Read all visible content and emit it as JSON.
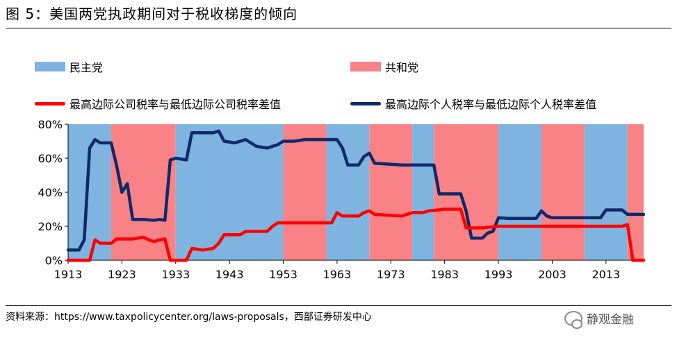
{
  "header": {
    "title": "图 5：美国两党执政期间对于税收梯度的倾向"
  },
  "legend": {
    "democrat": "民主党",
    "republican": "共和党",
    "corporate_line": "最高边际公司税率与最低边际公司税率差值",
    "individual_line": "最高边际个人税率与最低边际个人税率差值"
  },
  "colors": {
    "democrat": "#7eb4df",
    "republican": "#f98287",
    "corporate": "#ff0000",
    "individual": "#0e2a6b"
  },
  "footer": {
    "source": "资料来源：https://www.taxpolicycenter.org/laws-proposals，西部证券研发中心",
    "watermark": "静观金融"
  },
  "chart_data": {
    "type": "area",
    "xlim": [
      1913,
      2020
    ],
    "ylim": [
      0,
      80
    ],
    "ylabel_format": "percent",
    "x_ticks": [
      "1913",
      "1923",
      "1933",
      "1943",
      "1953",
      "1963",
      "1973",
      "1983",
      "1993",
      "2003",
      "2013"
    ],
    "y_ticks": [
      "0%",
      "20%",
      "40%",
      "60%",
      "80%"
    ],
    "party_periods": [
      {
        "party": "democrat",
        "start": 1913,
        "end": 1921
      },
      {
        "party": "republican",
        "start": 1921,
        "end": 1933
      },
      {
        "party": "democrat",
        "start": 1933,
        "end": 1953
      },
      {
        "party": "republican",
        "start": 1953,
        "end": 1961
      },
      {
        "party": "democrat",
        "start": 1961,
        "end": 1969
      },
      {
        "party": "republican",
        "start": 1969,
        "end": 1977
      },
      {
        "party": "democrat",
        "start": 1977,
        "end": 1981
      },
      {
        "party": "republican",
        "start": 1981,
        "end": 1993
      },
      {
        "party": "democrat",
        "start": 1993,
        "end": 2001
      },
      {
        "party": "republican",
        "start": 2001,
        "end": 2009
      },
      {
        "party": "democrat",
        "start": 2009,
        "end": 2017
      },
      {
        "party": "republican",
        "start": 2017,
        "end": 2020
      }
    ],
    "series": [
      {
        "name": "最高边际个人税率与最低边际个人税率差值",
        "key": "individual",
        "points": [
          [
            1913,
            6
          ],
          [
            1915,
            6
          ],
          [
            1916,
            12
          ],
          [
            1917,
            66
          ],
          [
            1918,
            71
          ],
          [
            1919,
            69
          ],
          [
            1920,
            69
          ],
          [
            1921,
            69
          ],
          [
            1922,
            56
          ],
          [
            1923,
            40
          ],
          [
            1924,
            45
          ],
          [
            1925,
            24
          ],
          [
            1927,
            24
          ],
          [
            1929,
            23.5
          ],
          [
            1930,
            24
          ],
          [
            1931,
            23.5
          ],
          [
            1932,
            59
          ],
          [
            1933,
            60
          ],
          [
            1935,
            59
          ],
          [
            1936,
            75
          ],
          [
            1938,
            75
          ],
          [
            1940,
            75
          ],
          [
            1941,
            76
          ],
          [
            1942,
            70
          ],
          [
            1944,
            69
          ],
          [
            1946,
            71
          ],
          [
            1948,
            67
          ],
          [
            1950,
            66
          ],
          [
            1952,
            68
          ],
          [
            1953,
            70
          ],
          [
            1955,
            70
          ],
          [
            1957,
            71
          ],
          [
            1960,
            71
          ],
          [
            1961,
            71
          ],
          [
            1963,
            71
          ],
          [
            1964,
            66
          ],
          [
            1965,
            56
          ],
          [
            1967,
            56
          ],
          [
            1968,
            61
          ],
          [
            1969,
            63
          ],
          [
            1970,
            57
          ],
          [
            1975,
            56
          ],
          [
            1980,
            56
          ],
          [
            1981,
            56
          ],
          [
            1982,
            39
          ],
          [
            1984,
            39
          ],
          [
            1986,
            39
          ],
          [
            1987,
            29
          ],
          [
            1988,
            13
          ],
          [
            1990,
            13
          ],
          [
            1991,
            16
          ],
          [
            1992,
            17
          ],
          [
            1993,
            25
          ],
          [
            1995,
            24.6
          ],
          [
            2000,
            24.6
          ],
          [
            2001,
            29
          ],
          [
            2002,
            26
          ],
          [
            2003,
            25
          ],
          [
            2005,
            25
          ],
          [
            2010,
            25
          ],
          [
            2012,
            25
          ],
          [
            2013,
            29.6
          ],
          [
            2016,
            29.6
          ],
          [
            2017,
            27
          ],
          [
            2020,
            27
          ]
        ]
      },
      {
        "name": "最高边际公司税率与最低边际公司税率差值",
        "key": "corporate",
        "points": [
          [
            1913,
            0
          ],
          [
            1917,
            0
          ],
          [
            1918,
            12
          ],
          [
            1919,
            10
          ],
          [
            1921,
            10
          ],
          [
            1922,
            12.5
          ],
          [
            1925,
            12.5
          ],
          [
            1927,
            13.5
          ],
          [
            1928,
            12
          ],
          [
            1929,
            11
          ],
          [
            1930,
            12
          ],
          [
            1931,
            12.5
          ],
          [
            1932,
            0
          ],
          [
            1935,
            0
          ],
          [
            1936,
            7
          ],
          [
            1938,
            6
          ],
          [
            1940,
            7
          ],
          [
            1941,
            10
          ],
          [
            1942,
            15
          ],
          [
            1945,
            15
          ],
          [
            1946,
            17
          ],
          [
            1950,
            17
          ],
          [
            1951,
            20
          ],
          [
            1952,
            22
          ],
          [
            1955,
            22
          ],
          [
            1962,
            22
          ],
          [
            1963,
            28
          ],
          [
            1964,
            26
          ],
          [
            1967,
            26
          ],
          [
            1968,
            28
          ],
          [
            1969,
            29
          ],
          [
            1970,
            27
          ],
          [
            1975,
            26
          ],
          [
            1977,
            28
          ],
          [
            1979,
            28
          ],
          [
            1980,
            29
          ],
          [
            1983,
            30
          ],
          [
            1986,
            30
          ],
          [
            1987,
            19
          ],
          [
            1988,
            19
          ],
          [
            1990,
            19
          ],
          [
            1993,
            20
          ],
          [
            2000,
            20
          ],
          [
            2010,
            20
          ],
          [
            2016,
            20
          ],
          [
            2017,
            21
          ],
          [
            2018,
            0
          ],
          [
            2020,
            0
          ]
        ]
      }
    ]
  }
}
